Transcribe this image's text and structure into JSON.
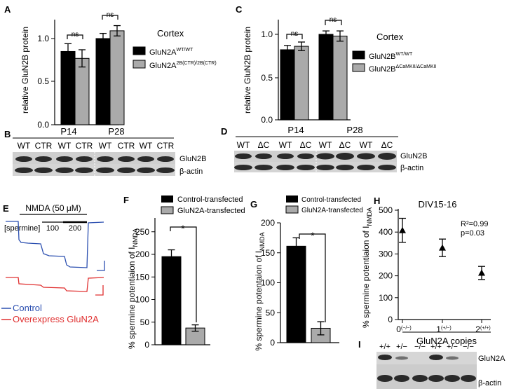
{
  "panels": {
    "A": {
      "letter": "A",
      "ylabel": "relative GluN2B protein",
      "region": "Cortex",
      "legend": [
        "GluN2A",
        "WT/WT",
        "GluN2A",
        "2B(CTR)/2B(CTR)"
      ],
      "groups": [
        "P14",
        "P28"
      ],
      "ns": [
        "ns",
        "ns"
      ],
      "yticks": [
        "0.0",
        "0.5",
        "1.0"
      ]
    },
    "B": {
      "letter": "B",
      "lanes": [
        "WT",
        "CTR",
        "WT",
        "CTR",
        "WT",
        "CTR",
        "WT",
        "CTR"
      ],
      "groups": [
        "P14",
        "P28"
      ],
      "bands": [
        "GluN2B",
        "β-actin"
      ]
    },
    "C": {
      "letter": "C",
      "ylabel": "relative GluN2B protein",
      "region": "Cortex",
      "legend": [
        "GluN2B",
        "WT/WT",
        "GluN2B",
        "ΔCaMKII/ΔCaMKII"
      ],
      "groups": [
        "P14",
        "P28"
      ],
      "ns": [
        "ns",
        "ns"
      ],
      "yticks": [
        "0.0",
        "0.5",
        "1.0"
      ]
    },
    "D": {
      "letter": "D",
      "lanes": [
        "WT",
        "ΔC",
        "WT",
        "ΔC",
        "WT",
        "ΔC",
        "WT",
        "ΔC"
      ],
      "groups": [
        "P14",
        "P28"
      ],
      "bands": [
        "GluN2B",
        "β-actin"
      ]
    },
    "E": {
      "letter": "E",
      "drug": "NMDA (50 μM)",
      "spermine": "[spermine]",
      "conc": [
        "100",
        "200"
      ],
      "legend": [
        "Control",
        "Overexpress GluN2A"
      ]
    },
    "F": {
      "letter": "F",
      "ylabel_main": "% spermine potentiaion of I",
      "ylabel_sub": "NMDA",
      "legend": [
        "Control-transfected",
        "GluN2A-transfected"
      ],
      "sig": "*",
      "yticks": [
        "0",
        "50",
        "100",
        "150",
        "200",
        "250"
      ]
    },
    "G": {
      "letter": "G",
      "ylabel_main": "% spermine potentaion of I",
      "ylabel_sub": "NMDA",
      "legend": [
        "Control-transfected",
        "GluN2A-transfected"
      ],
      "sig": "*",
      "yticks": [
        "0",
        "50",
        "100",
        "150",
        "200"
      ]
    },
    "H": {
      "letter": "H",
      "title": "DIV15-16",
      "ylabel_main": "% spermine potentiaion of I",
      "ylabel_sub": "NMDA",
      "stats": [
        "R²=0.99",
        "p=0.03"
      ],
      "xlabel": "GluN2A copies",
      "xticks": [
        [
          "0",
          "(−/−)"
        ],
        [
          "1",
          "(+/−)"
        ],
        [
          "2",
          "(+/+)"
        ]
      ],
      "yticks": [
        "0",
        "100",
        "200",
        "300",
        "400",
        "500"
      ]
    },
    "I": {
      "letter": "I",
      "lanes": [
        "+/+",
        "+/−",
        "−/−",
        "+/+",
        "+/−",
        "−/−"
      ],
      "bands": [
        "GluN2A",
        "β-actin"
      ]
    }
  },
  "colors": {
    "wt": "#000000",
    "mut": "#aaaaaa",
    "control_trace": "#2b4fb0",
    "overexpress_trace": "#e03030"
  },
  "chart_data": [
    {
      "panel": "A",
      "type": "bar",
      "categories": [
        "P14",
        "P28"
      ],
      "ylim": [
        0,
        1.25
      ],
      "series": [
        {
          "name": "GluN2A WT/WT",
          "values": [
            0.85,
            1.0
          ],
          "errors": [
            0.09,
            0.06
          ]
        },
        {
          "name": "GluN2A 2B(CTR)/2B(CTR)",
          "values": [
            0.77,
            1.09
          ],
          "errors": [
            0.1,
            0.06
          ]
        }
      ]
    },
    {
      "panel": "C",
      "type": "bar",
      "categories": [
        "P14",
        "P28"
      ],
      "ylim": [
        0,
        1.2
      ],
      "series": [
        {
          "name": "GluN2B WT/WT",
          "values": [
            0.82,
            1.0
          ],
          "errors": [
            0.05,
            0.04
          ]
        },
        {
          "name": "GluN2B ΔCaMKII/ΔCaMKII",
          "values": [
            0.86,
            0.98
          ],
          "errors": [
            0.05,
            0.06
          ]
        }
      ]
    },
    {
      "panel": "F",
      "type": "bar",
      "categories": [
        "Control-transfected",
        "GluN2A-transfected"
      ],
      "ylim": [
        0,
        250
      ],
      "values": [
        195,
        37
      ],
      "errors": [
        15,
        7
      ]
    },
    {
      "panel": "G",
      "type": "bar",
      "categories": [
        "Control-transfected",
        "GluN2A-transfected"
      ],
      "ylim": [
        0,
        200
      ],
      "values": [
        161,
        24
      ],
      "errors": [
        14,
        11
      ]
    },
    {
      "panel": "H",
      "type": "scatter",
      "x": [
        0,
        1,
        2
      ],
      "xticks": [
        "0(−/−)",
        "1(+/−)",
        "2(+/+)"
      ],
      "ylim": [
        0,
        500
      ],
      "values": [
        408,
        328,
        213
      ],
      "errors": [
        55,
        40,
        30
      ]
    }
  ]
}
